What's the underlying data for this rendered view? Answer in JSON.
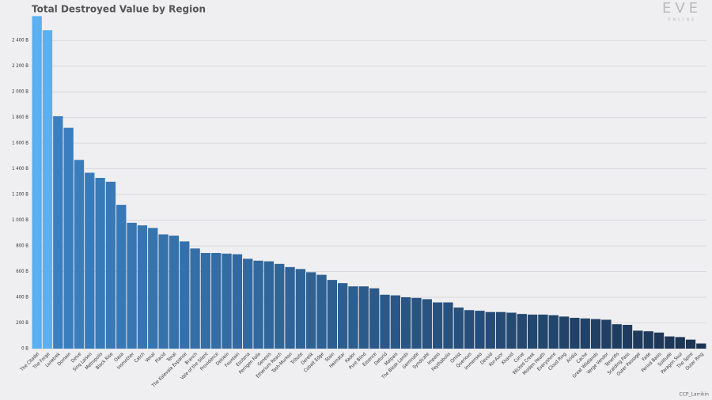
{
  "chart_data": {
    "type": "bar",
    "title": "Total Destroyed Value by Region",
    "logo": {
      "main": "EVE",
      "sub": "ONLINE"
    },
    "credit": "CCP_Larrikin",
    "categories": [
      "The Citadel",
      "The Forge",
      "Lonetrek",
      "Domain",
      "Delve",
      "Sinq Laison",
      "Metropolis",
      "Black Rise",
      "Oasa",
      "Insmother",
      "Catch",
      "Venal",
      "Placid",
      "Tenal",
      "The Kalevala Expanse",
      "Branch",
      "Vale of the Silent",
      "Providence",
      "Deklein",
      "Fountain",
      "Esoteria",
      "Perrigen Falls",
      "Genesis",
      "Etherium Reach",
      "Tash-Murkon",
      "Tribute",
      "Derelik",
      "Cobalt Edge",
      "Stain",
      "Heimatar",
      "Kador",
      "Pure Blind",
      "Essence",
      "Detorid",
      "Malpais",
      "The Bleak Lands",
      "Geminate",
      "Syndicate",
      "Impass",
      "Feythabolis",
      "Omist",
      "Querious",
      "Immensea",
      "Devoid",
      "Kor-Azor",
      "Khanid",
      "Curse",
      "Wicked Creek",
      "Molden Heath",
      "Everyshore",
      "Cloud Ring",
      "Aridia",
      "Cache",
      "Great Wildlands",
      "Verge Vendor",
      "Tenerifis",
      "Scalding Pass",
      "Outer Passage",
      "Fade",
      "Period Basis",
      "Solitude",
      "Paragon Soul",
      "The Spire",
      "Outer Ring"
    ],
    "values": [
      2590,
      2480,
      1810,
      1720,
      1470,
      1370,
      1330,
      1300,
      1120,
      980,
      960,
      940,
      890,
      880,
      835,
      780,
      745,
      745,
      740,
      735,
      700,
      685,
      680,
      660,
      635,
      620,
      595,
      575,
      535,
      510,
      485,
      485,
      470,
      420,
      415,
      400,
      395,
      385,
      360,
      360,
      320,
      300,
      295,
      285,
      285,
      280,
      270,
      265,
      265,
      260,
      250,
      240,
      235,
      230,
      225,
      190,
      185,
      140,
      135,
      125,
      95,
      90,
      70,
      40
    ],
    "colors": [
      "#5ab0f0",
      "#5ab0f0",
      "#3b7fbf",
      "#3a7ebd",
      "#3a7dbb",
      "#397bba",
      "#397ab8",
      "#3879b6",
      "#3878b4",
      "#3776b2",
      "#3775b1",
      "#3674af",
      "#3673ad",
      "#3571ab",
      "#3570aa",
      "#346fa8",
      "#346ea6",
      "#336da4",
      "#336ba2",
      "#326aa1",
      "#32699f",
      "#31689d",
      "#31669b",
      "#306599",
      "#2f6498",
      "#2f6396",
      "#2e6194",
      "#2e6092",
      "#2d5f91",
      "#2d5e8f",
      "#2c5d8d",
      "#2c5b8b",
      "#2b5989",
      "#2b5888",
      "#2a5786",
      "#2a5684",
      "#295482",
      "#295380",
      "#28527f",
      "#28517d",
      "#27507b",
      "#274e79",
      "#264d78",
      "#254c76",
      "#254b74",
      "#244a72",
      "#244870",
      "#23476f",
      "#23466d",
      "#22456b",
      "#224369",
      "#214267",
      "#214166",
      "#204064",
      "#203f62",
      "#1f3d60",
      "#1f3c5f",
      "#1e3b5d",
      "#1e3a5b",
      "#1d3859",
      "#1d3757",
      "#1c3656",
      "#1c3554",
      "#1b3452"
    ],
    "ylim": [
      0,
      2580
    ],
    "yticks": [
      {
        "value": 0,
        "label": "0 B"
      },
      {
        "value": 200,
        "label": "200 B"
      },
      {
        "value": 400,
        "label": "400 B"
      },
      {
        "value": 600,
        "label": "600 B"
      },
      {
        "value": 800,
        "label": "800 B"
      },
      {
        "value": 1000,
        "label": "1 000 B"
      },
      {
        "value": 1200,
        "label": "1 200 B"
      },
      {
        "value": 1400,
        "label": "1 400 B"
      },
      {
        "value": 1600,
        "label": "1 600 B"
      },
      {
        "value": 1800,
        "label": "1 800 B"
      },
      {
        "value": 2000,
        "label": "2 000 B"
      },
      {
        "value": 2200,
        "label": "2 200 B"
      },
      {
        "value": 2400,
        "label": "2 400 B"
      }
    ],
    "grid": true
  }
}
